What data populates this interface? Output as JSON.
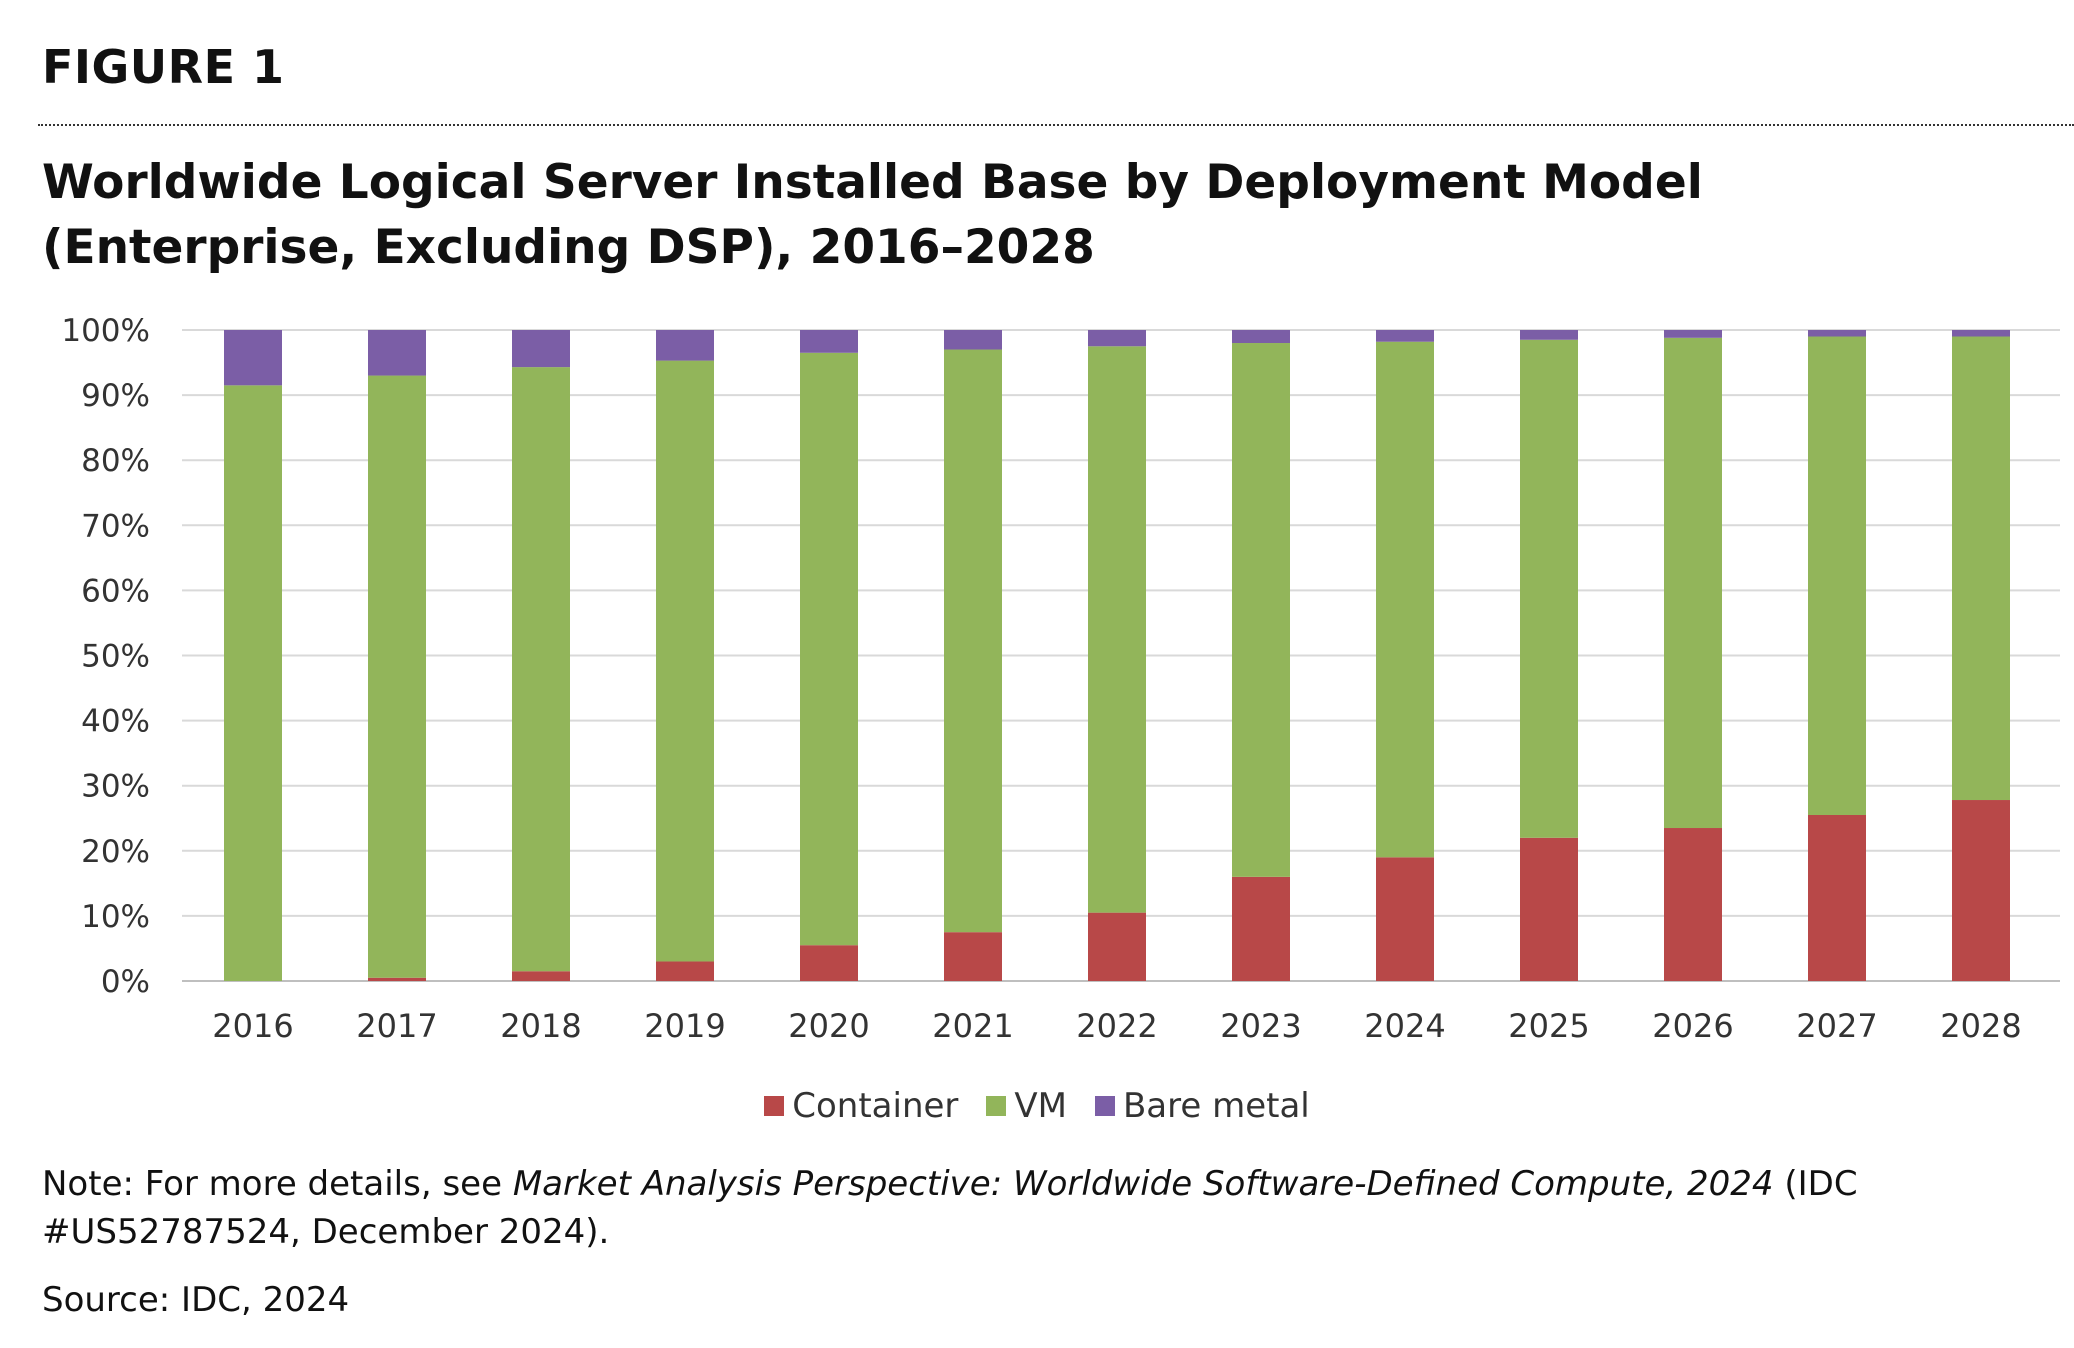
{
  "figure_label": "FIGURE 1",
  "title": {
    "line1": "Worldwide Logical Server Installed Base by Deployment Model",
    "line2": "(Enterprise, Excluding DSP), 2016–2028"
  },
  "chart_data": {
    "type": "bar",
    "stacked": true,
    "categories": [
      "2016",
      "2017",
      "2018",
      "2019",
      "2020",
      "2021",
      "2022",
      "2023",
      "2024",
      "2025",
      "2026",
      "2027",
      "2028"
    ],
    "series": [
      {
        "name": "Container",
        "color": "#b84848",
        "values": [
          0,
          0.5,
          1.5,
          3,
          5.5,
          7.5,
          10.5,
          16,
          19,
          22,
          23.5,
          25.5,
          27.8
        ]
      },
      {
        "name": "VM",
        "color": "#92b55a",
        "values": [
          91.5,
          92.5,
          92.8,
          92.3,
          91,
          89.5,
          87,
          82,
          79.2,
          76.5,
          75.3,
          73.5,
          71.2
        ]
      },
      {
        "name": "Bare metal",
        "color": "#7b5ea6",
        "values": [
          8.5,
          7,
          5.7,
          4.7,
          3.5,
          3,
          2.5,
          2,
          1.8,
          1.5,
          1.2,
          1,
          1
        ]
      }
    ],
    "y_ticks": [
      "0%",
      "10%",
      "20%",
      "30%",
      "40%",
      "50%",
      "60%",
      "70%",
      "80%",
      "90%",
      "100%"
    ],
    "ylim": [
      0,
      100
    ],
    "grid": true,
    "legend_position": "bottom"
  },
  "legend": {
    "items": [
      {
        "label": "Container",
        "color": "#b84848"
      },
      {
        "label": "VM",
        "color": "#92b55a"
      },
      {
        "label": "Bare metal",
        "color": "#7b5ea6"
      }
    ]
  },
  "note": {
    "prefix": "Note: For more details, see ",
    "italic": "Market Analysis Perspective: Worldwide Software-Defined Compute, 2024",
    "suffix": " (IDC #US52787524, December 2024)."
  },
  "source": "Source: IDC, 2024"
}
